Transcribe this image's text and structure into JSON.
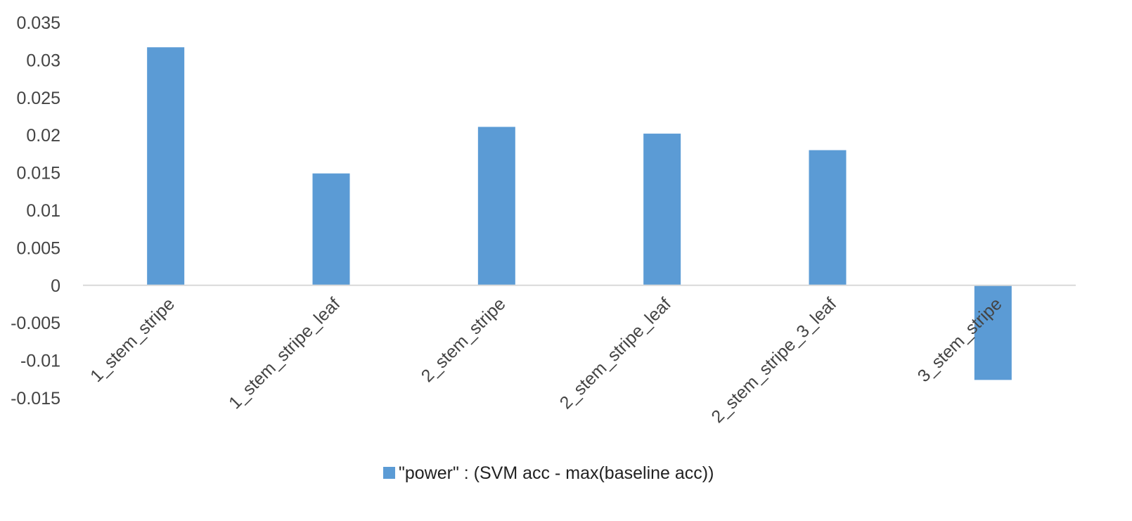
{
  "chart_data": {
    "type": "bar",
    "categories": [
      "1_stem_stripe",
      "1_stem_stripe_leaf",
      "2_stem_stripe",
      "2_stem_stripe_leaf",
      "2_stem_stripe_3_leaf",
      "3_stem_stripe"
    ],
    "series": [
      {
        "name": "\"power\" : (SVM acc - max(baseline acc))",
        "values": [
          0.0317,
          0.0149,
          0.0211,
          0.0202,
          0.018,
          -0.0126
        ],
        "color": "#5b9bd5"
      }
    ],
    "title": "",
    "xlabel": "",
    "ylabel": "",
    "ylim": [
      -0.015,
      0.035
    ],
    "yticks": [
      "0.035",
      "0.03",
      "0.025",
      "0.02",
      "0.015",
      "0.01",
      "0.005",
      "0",
      "-0.005",
      "-0.01",
      "-0.015"
    ],
    "grid": false,
    "legend": "bottom",
    "axis_color": "#d9d9d9"
  }
}
